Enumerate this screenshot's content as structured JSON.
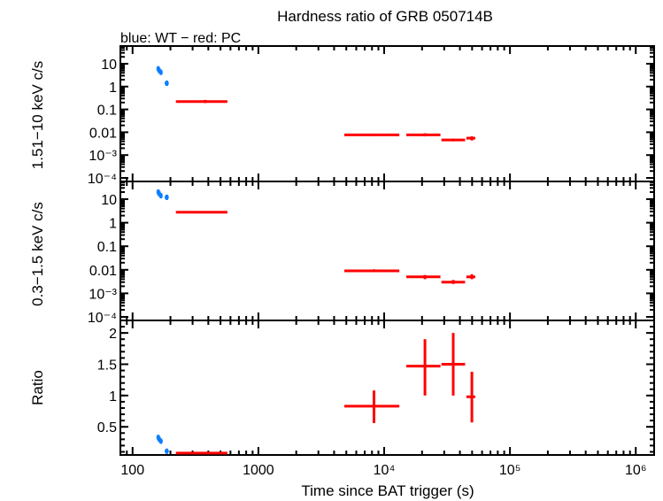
{
  "chart_data": [
    {
      "type": "scatter",
      "title": "Hardness ratio of GRB 050714B",
      "subtitle": "blue: WT − red: PC",
      "ylabel": "1.51−10 keV c/s",
      "yscale": "log",
      "ylim": [
        0.0001,
        40
      ],
      "yticks": [
        "10",
        "1",
        "0.1",
        "0.01",
        "10⁻³",
        "10⁻⁴"
      ],
      "series": [
        {
          "color": "#0a7dff",
          "points": [
            {
              "x": 160,
              "y": 6.0
            },
            {
              "x": 163,
              "y": 5.0
            },
            {
              "x": 168,
              "y": 4.2
            },
            {
              "x": 187,
              "y": 1.4,
              "xlo": 180,
              "xhi": 194
            }
          ]
        },
        {
          "color": "#ff0000",
          "points": [
            {
              "x": 378,
              "y": 0.22,
              "xlo": 221,
              "xhi": 567,
              "ylo": 0.19,
              "yhi": 0.26
            },
            {
              "x": 8300,
              "y": 0.0077,
              "xlo": 4820,
              "xhi": 13200,
              "ylo": 0.0068,
              "yhi": 0.0087
            },
            {
              "x": 21100,
              "y": 0.0077,
              "xlo": 15000,
              "xhi": 28000,
              "ylo": 0.0066,
              "yhi": 0.009
            },
            {
              "x": 35400,
              "y": 0.0046,
              "xlo": 28500,
              "xhi": 44000,
              "ylo": 0.004,
              "yhi": 0.0052
            },
            {
              "x": 49800,
              "y": 0.0055,
              "xlo": 45000,
              "xhi": 53000,
              "ylo": 0.0044,
              "yhi": 0.0066
            }
          ]
        }
      ]
    },
    {
      "type": "scatter",
      "ylabel": "0.3−1.5 keV c/s",
      "yscale": "log",
      "ylim": [
        0.0001,
        40
      ],
      "yticks": [
        "10",
        "1",
        "0.1",
        "0.01",
        "10⁻³",
        "10⁻⁴"
      ],
      "series": [
        {
          "color": "#0a7dff",
          "points": [
            {
              "x": 160,
              "y": 20
            },
            {
              "x": 163,
              "y": 17
            },
            {
              "x": 168,
              "y": 14
            },
            {
              "x": 187,
              "y": 12,
              "xlo": 180,
              "xhi": 194
            }
          ]
        },
        {
          "color": "#ff0000",
          "points": [
            {
              "x": 378,
              "y": 2.8,
              "xlo": 221,
              "xhi": 567,
              "ylo": 2.6,
              "yhi": 3.0
            },
            {
              "x": 8300,
              "y": 0.009,
              "xlo": 4820,
              "xhi": 13200,
              "ylo": 0.008,
              "yhi": 0.0105
            },
            {
              "x": 21100,
              "y": 0.005,
              "xlo": 15000,
              "xhi": 28000,
              "ylo": 0.004,
              "yhi": 0.006
            },
            {
              "x": 35400,
              "y": 0.003,
              "xlo": 28500,
              "xhi": 44000,
              "ylo": 0.0025,
              "yhi": 0.0037
            },
            {
              "x": 49800,
              "y": 0.005,
              "xlo": 45000,
              "xhi": 53000,
              "ylo": 0.004,
              "yhi": 0.0065
            }
          ]
        }
      ]
    },
    {
      "type": "scatter",
      "ylabel": "Ratio",
      "xlabel": "Time since BAT trigger (s)",
      "xscale": "log",
      "xlim": [
        80,
        1400000
      ],
      "xticks": [
        "100",
        "1000",
        "10⁴",
        "10⁵",
        "10⁶"
      ],
      "yscale": "linear",
      "ylim": [
        0.05,
        2.2
      ],
      "yticks": [
        "2",
        "1.5",
        "1",
        "0.5"
      ],
      "series": [
        {
          "color": "#0a7dff",
          "points": [
            {
              "x": 160,
              "y": 0.33
            },
            {
              "x": 163,
              "y": 0.3
            },
            {
              "x": 168,
              "y": 0.27
            },
            {
              "x": 187,
              "y": 0.11,
              "xlo": 180,
              "xhi": 194
            }
          ]
        },
        {
          "color": "#ff0000",
          "points": [
            {
              "x": 378,
              "y": 0.08,
              "xlo": 221,
              "xhi": 567,
              "ylo": 0.07,
              "yhi": 0.09
            },
            {
              "x": 8300,
              "y": 0.83,
              "xlo": 4820,
              "xhi": 13200,
              "ylo": 0.56,
              "yhi": 1.08
            },
            {
              "x": 21100,
              "y": 1.47,
              "xlo": 15000,
              "xhi": 28000,
              "ylo": 1.0,
              "yhi": 1.9
            },
            {
              "x": 35400,
              "y": 1.5,
              "xlo": 28500,
              "xhi": 44000,
              "ylo": 1.0,
              "yhi": 2.0
            },
            {
              "x": 49800,
              "y": 0.98,
              "xlo": 45000,
              "xhi": 53000,
              "ylo": 0.57,
              "yhi": 1.38
            }
          ]
        }
      ]
    }
  ]
}
